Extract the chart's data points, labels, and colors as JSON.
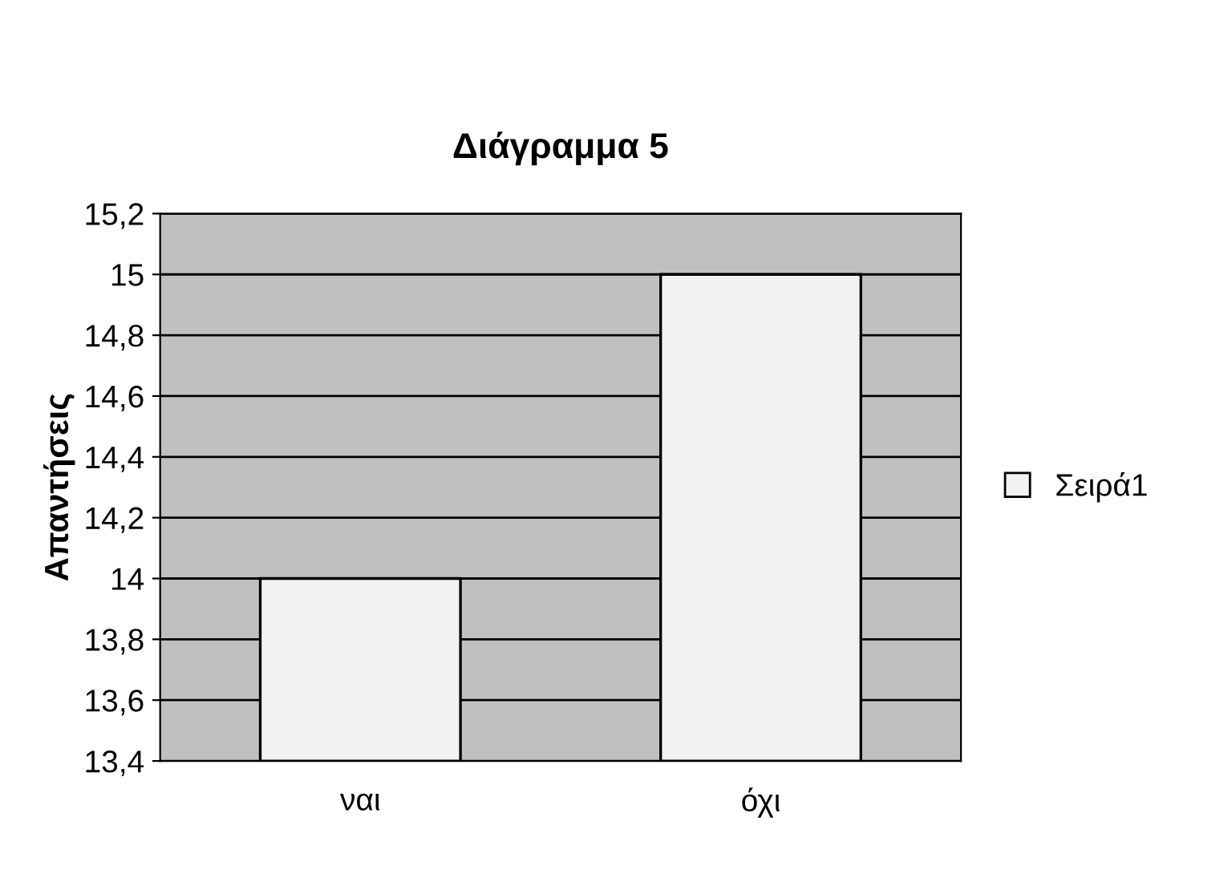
{
  "chart_data": {
    "type": "bar",
    "title": "Διάγραμμα 5",
    "ylabel": "Απαντήσεις",
    "categories": [
      "ναι",
      "όχι"
    ],
    "series": [
      {
        "name": "Σειρά1",
        "color": "#f2f2f2",
        "values": [
          14,
          15
        ]
      }
    ],
    "ylim": [
      13.4,
      15.2
    ],
    "yticks": [
      {
        "value": 13.4,
        "label": "13,4"
      },
      {
        "value": 13.6,
        "label": "13,6"
      },
      {
        "value": 13.8,
        "label": "13,8"
      },
      14,
      {
        "value": 14.2,
        "label": "14,2"
      },
      {
        "value": 14.4,
        "label": "14,4"
      },
      {
        "value": 14.6,
        "label": "14,6"
      },
      {
        "value": 14.8,
        "label": "14,8"
      },
      15,
      {
        "value": 15.2,
        "label": "15,2"
      }
    ],
    "grid": "y",
    "legend": "right"
  }
}
